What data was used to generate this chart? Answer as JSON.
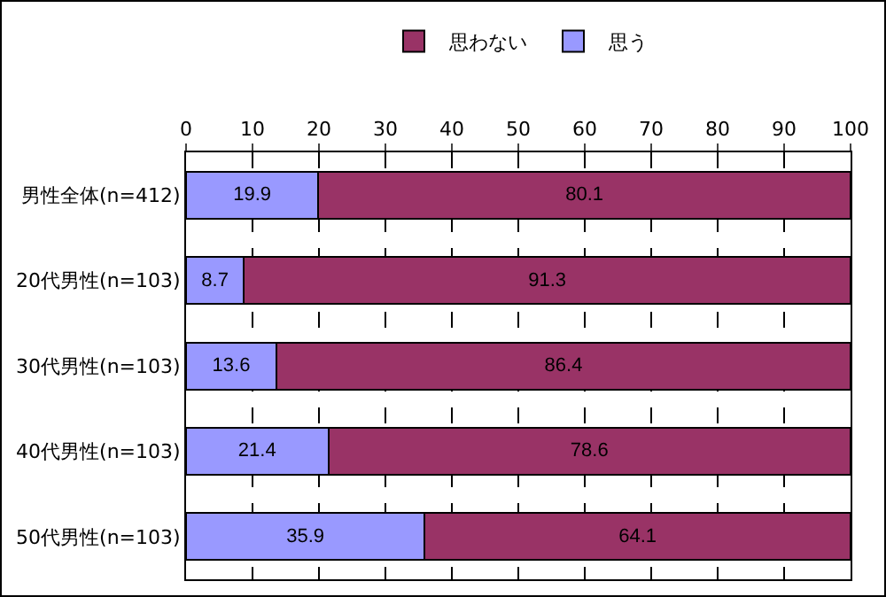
{
  "chart_data": {
    "type": "bar",
    "orientation": "horizontal",
    "stacked": true,
    "categories": [
      "男性全体(n=412)",
      "20代男性(n=103)",
      "30代男性(n=103)",
      "40代男性(n=103)",
      "50代男性(n=103)"
    ],
    "series": [
      {
        "name": "思う",
        "color": "#9999ff",
        "values": [
          19.9,
          8.7,
          13.6,
          21.4,
          35.9
        ]
      },
      {
        "name": "思わない",
        "color": "#993366",
        "values": [
          80.1,
          91.3,
          86.4,
          78.6,
          64.1
        ]
      }
    ],
    "xlim": [
      0,
      100
    ],
    "xticks": [
      0,
      10,
      20,
      30,
      40,
      50,
      60,
      70,
      80,
      90,
      100
    ],
    "grid": "x",
    "legend": "top",
    "data_labels": true
  }
}
